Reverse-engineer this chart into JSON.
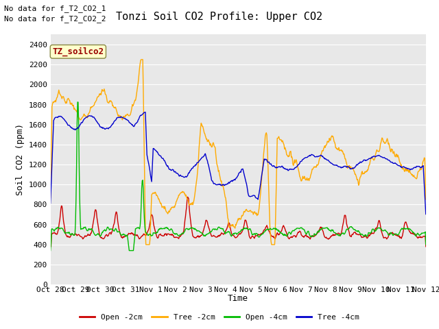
{
  "title": "Tonzi Soil CO2 Profile: Upper CO2",
  "ylabel": "Soil CO2 (ppm)",
  "xlabel": "Time",
  "annotations": [
    "No data for f_T2_CO2_1",
    "No data for f_T2_CO2_2"
  ],
  "file_label": "TZ_soilco2",
  "ylim": [
    0,
    2500
  ],
  "yticks": [
    0,
    200,
    400,
    600,
    800,
    1000,
    1200,
    1400,
    1600,
    1800,
    2000,
    2200,
    2400
  ],
  "xtick_labels": [
    "Oct 28",
    "Oct 29",
    "Oct 30",
    "Oct 31",
    "Nov 1",
    "Nov 2",
    "Nov 3",
    "Nov 4",
    "Nov 5",
    "Nov 6",
    "Nov 7",
    "Nov 8",
    "Nov 9",
    "Nov 10",
    "Nov 11",
    "Nov 12"
  ],
  "legend": [
    {
      "label": "Open -2cm",
      "color": "#cc0000"
    },
    {
      "label": "Tree -2cm",
      "color": "#ffaa00"
    },
    {
      "label": "Open -4cm",
      "color": "#00bb00"
    },
    {
      "label": "Tree -4cm",
      "color": "#0000cc"
    }
  ],
  "plot_bg_color": "#e8e8e8",
  "fig_bg_color": "#ffffff",
  "grid_color": "#ffffff",
  "title_fontsize": 11,
  "axis_label_fontsize": 9,
  "tick_fontsize": 8,
  "annot_fontsize": 8,
  "file_label_fontsize": 9
}
